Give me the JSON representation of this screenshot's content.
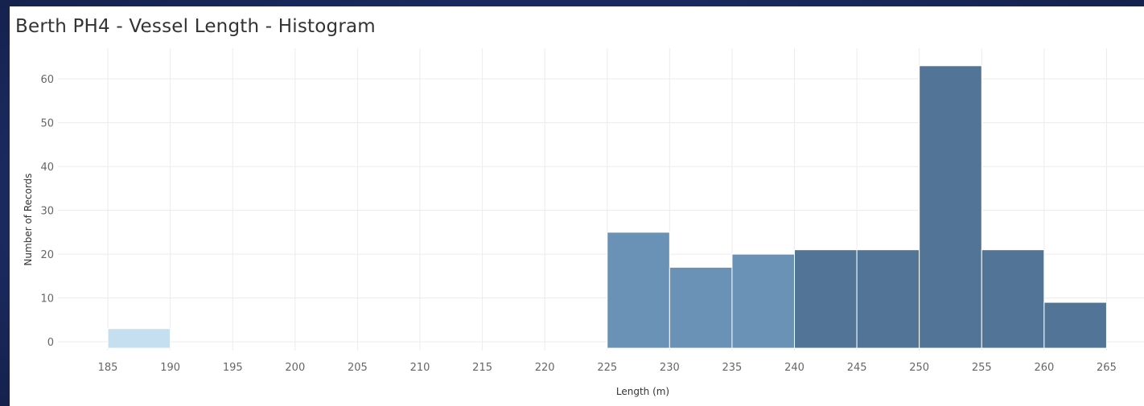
{
  "chart_data": {
    "type": "bar",
    "title": "Berth PH4 - Vessel Length - Histogram",
    "xlabel": "Length (m)",
    "ylabel": "Number of Records",
    "bin_width": 5,
    "x_ticks": [
      185,
      190,
      195,
      200,
      205,
      210,
      215,
      220,
      225,
      230,
      235,
      240,
      245,
      250,
      255,
      260,
      265
    ],
    "y_ticks": [
      0,
      10,
      20,
      30,
      40,
      50,
      60
    ],
    "xlim": [
      181,
      268
    ],
    "ylim": [
      -2,
      67
    ],
    "grid": true,
    "bins": [
      {
        "start": 185,
        "end": 190,
        "value": 3,
        "color": "#c5dff0"
      },
      {
        "start": 225,
        "end": 230,
        "value": 25,
        "color": "#6a91b6"
      },
      {
        "start": 230,
        "end": 235,
        "value": 17,
        "color": "#6a91b6"
      },
      {
        "start": 235,
        "end": 240,
        "value": 20,
        "color": "#6a91b6"
      },
      {
        "start": 240,
        "end": 245,
        "value": 21,
        "color": "#527597"
      },
      {
        "start": 245,
        "end": 250,
        "value": 21,
        "color": "#527597"
      },
      {
        "start": 250,
        "end": 255,
        "value": 63,
        "color": "#527597"
      },
      {
        "start": 255,
        "end": 260,
        "value": 21,
        "color": "#527597"
      },
      {
        "start": 260,
        "end": 265,
        "value": 9,
        "color": "#527597"
      }
    ]
  },
  "colors": {
    "background": "#1e2f66",
    "panel": "#ffffff",
    "grid": "#ececec",
    "light_bin": "#c5dff0",
    "mid_bin": "#6a91b6",
    "dark_bin": "#527597"
  }
}
